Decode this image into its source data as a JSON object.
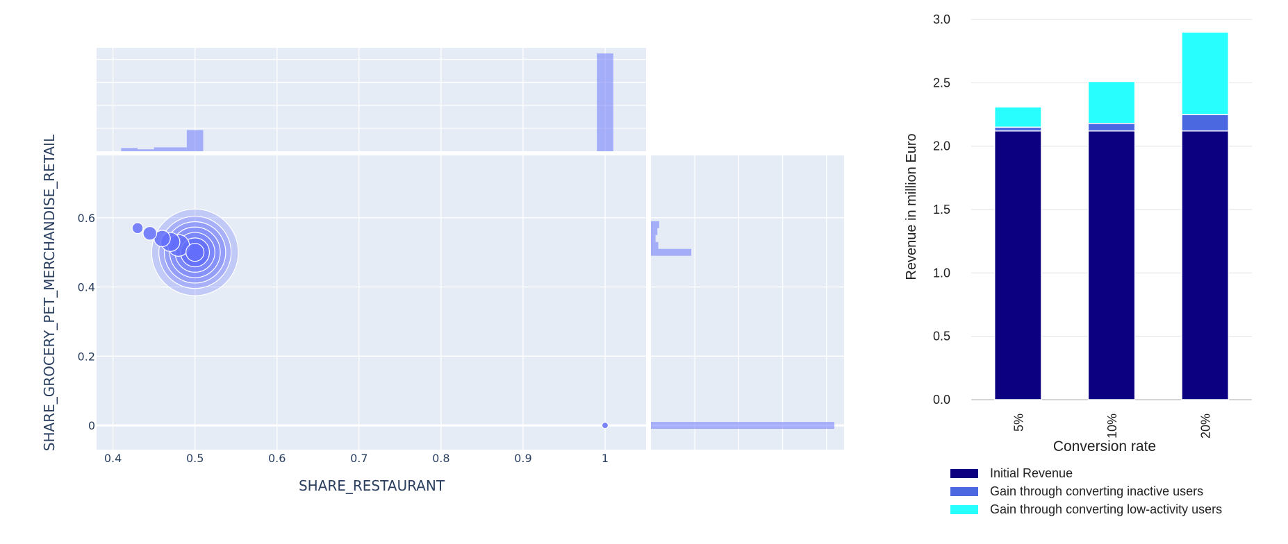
{
  "chart_data": [
    {
      "type": "scatter",
      "title": "",
      "xlabel": "SHARE_RESTAURANT",
      "ylabel": "SHARE_GROCERY_PET_MERCHANDISE_RETAIL",
      "xlim": [
        0.38,
        1.05
      ],
      "ylim": [
        -0.07,
        0.78
      ],
      "x_ticks": [
        "0.4",
        "0.5",
        "0.6",
        "0.7",
        "0.8",
        "0.9",
        "1"
      ],
      "y_ticks": [
        "0",
        "0.2",
        "0.4",
        "0.6"
      ],
      "grid": true,
      "marker_color": "#636efa",
      "points": [
        {
          "x": 0.43,
          "y": 0.57,
          "size": 0.6
        },
        {
          "x": 0.445,
          "y": 0.555,
          "size": 0.75
        },
        {
          "x": 0.46,
          "y": 0.54,
          "size": 0.9
        },
        {
          "x": 0.47,
          "y": 0.53,
          "size": 1.05
        },
        {
          "x": 0.48,
          "y": 0.52,
          "size": 1.2
        },
        {
          "x": 0.5,
          "y": 0.5,
          "size": 4.8
        },
        {
          "x": 0.5,
          "y": 0.5,
          "size": 4.0
        },
        {
          "x": 0.5,
          "y": 0.5,
          "size": 3.4
        },
        {
          "x": 0.5,
          "y": 0.5,
          "size": 2.8
        },
        {
          "x": 0.5,
          "y": 0.5,
          "size": 2.2
        },
        {
          "x": 0.5,
          "y": 0.5,
          "size": 1.6
        },
        {
          "x": 0.5,
          "y": 0.5,
          "size": 1.0
        },
        {
          "x": 1.0,
          "y": 0.0,
          "size": 0.35
        }
      ],
      "marginal_x": {
        "type": "histogram",
        "bins": [
          {
            "x0": 0.41,
            "x1": 0.43,
            "count": 1
          },
          {
            "x0": 0.43,
            "x1": 0.45,
            "count": 0.6
          },
          {
            "x0": 0.45,
            "x1": 0.49,
            "count": 1.2
          },
          {
            "x0": 0.49,
            "x1": 0.51,
            "count": 6.5
          },
          {
            "x0": 0.99,
            "x1": 1.01,
            "count": 30
          }
        ]
      },
      "marginal_y": {
        "type": "histogram",
        "bins": [
          {
            "y0": -0.01,
            "y1": 0.01,
            "count": 100
          },
          {
            "y0": 0.49,
            "y1": 0.51,
            "count": 22
          },
          {
            "y0": 0.51,
            "y1": 0.53,
            "count": 4
          },
          {
            "y0": 0.53,
            "y1": 0.55,
            "count": 2.5
          },
          {
            "y0": 0.55,
            "y1": 0.57,
            "count": 3.5
          },
          {
            "y0": 0.57,
            "y1": 0.59,
            "count": 4.5
          }
        ]
      }
    },
    {
      "type": "bar",
      "stacked": true,
      "title": "",
      "xlabel": "Conversion rate",
      "ylabel": "Revenue in million Euro",
      "categories": [
        "5%",
        "10%",
        "20%"
      ],
      "ylim": [
        0,
        3.0
      ],
      "y_ticks": [
        "0.0",
        "0.5",
        "1.0",
        "1.5",
        "2.0",
        "2.5",
        "3.0"
      ],
      "grid": true,
      "legend_position": "bottom",
      "series": [
        {
          "name": "Initial Revenue",
          "values": [
            2.12,
            2.12,
            2.12
          ],
          "color": "#0d0080"
        },
        {
          "name": "Gain through converting inactive users",
          "values": [
            0.03,
            0.06,
            0.13
          ],
          "color": "#4c68e0"
        },
        {
          "name": "Gain through converting low-activity users",
          "values": [
            0.16,
            0.33,
            0.65
          ],
          "color": "#28fefe"
        }
      ]
    }
  ]
}
